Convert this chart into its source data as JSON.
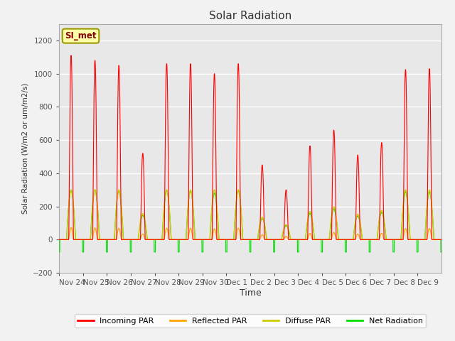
{
  "title": "Solar Radiation",
  "ylabel": "Solar Radiation (W/m2 or um/m2/s)",
  "xlabel": "Time",
  "ylim": [
    -200,
    1300
  ],
  "yticks": [
    -200,
    0,
    200,
    400,
    600,
    800,
    1000,
    1200
  ],
  "label_text": "SI_met",
  "colors": {
    "incoming": "#FF0000",
    "reflected": "#FFA500",
    "diffuse": "#CCCC00",
    "net": "#00DD00"
  },
  "legend_labels": [
    "Incoming PAR",
    "Reflected PAR",
    "Diffuse PAR",
    "Net Radiation"
  ],
  "x_tick_labels": [
    "Nov 24",
    "Nov 25",
    "Nov 26",
    "Nov 27",
    "Nov 28",
    "Nov 29",
    "Nov 30",
    "Dec 1",
    "Dec 2",
    "Dec 3",
    "Dec 4",
    "Dec 5",
    "Dec 6",
    "Dec 7",
    "Dec 8",
    "Dec 9"
  ],
  "day_peaks_incoming": [
    1110,
    1080,
    1050,
    520,
    1060,
    1060,
    1000,
    1060,
    450,
    300,
    565,
    660,
    510,
    585,
    1025,
    1030
  ],
  "plot_bg_color": "#E8E8E8",
  "fig_bg_color": "#F2F2F2"
}
